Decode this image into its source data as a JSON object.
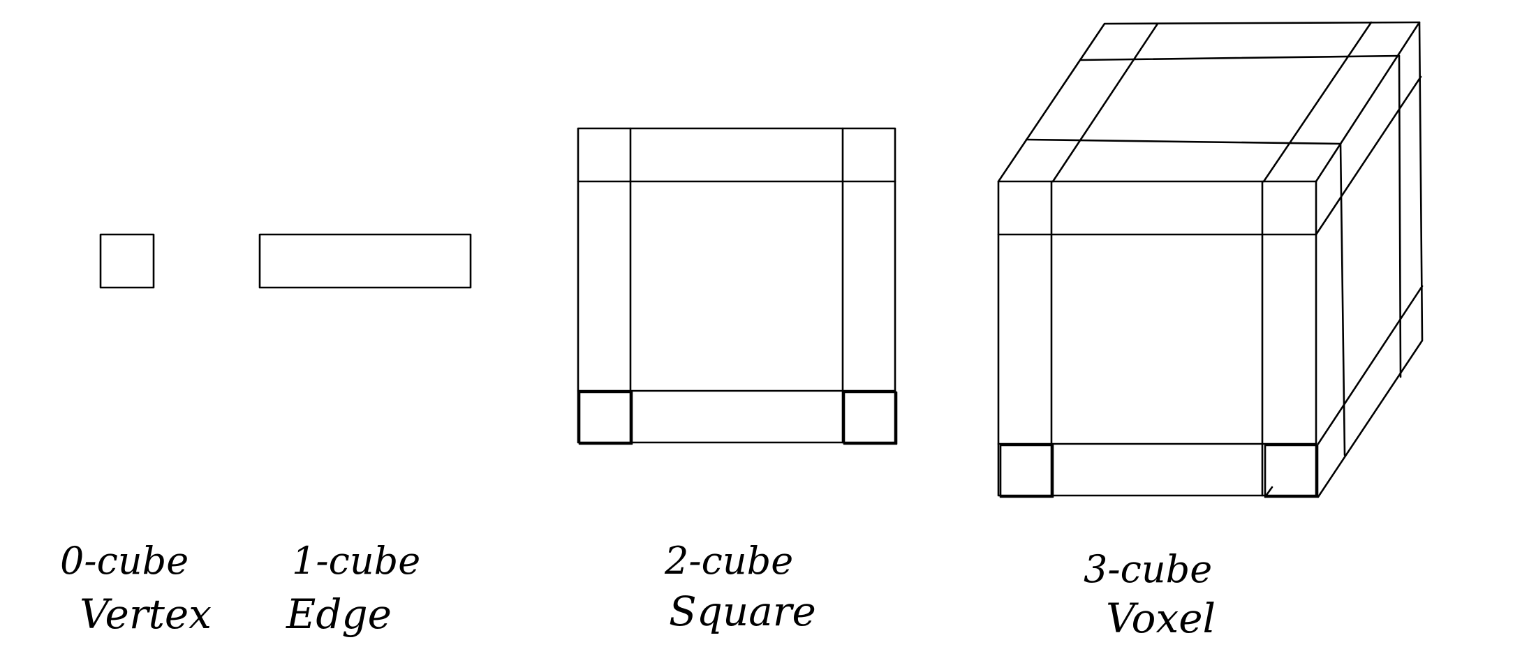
{
  "colors": {
    "background": "#ffffff",
    "ink": "#000000"
  },
  "figures": [
    {
      "id": "vertex",
      "order_label": "0-cube",
      "name_label": "Vertex"
    },
    {
      "id": "edge",
      "order_label": "1-cube",
      "name_label": "Edge"
    },
    {
      "id": "square",
      "order_label": "2-cube",
      "name_label": "Square"
    },
    {
      "id": "voxel",
      "order_label": "3-cube",
      "name_label": "Voxel"
    }
  ]
}
